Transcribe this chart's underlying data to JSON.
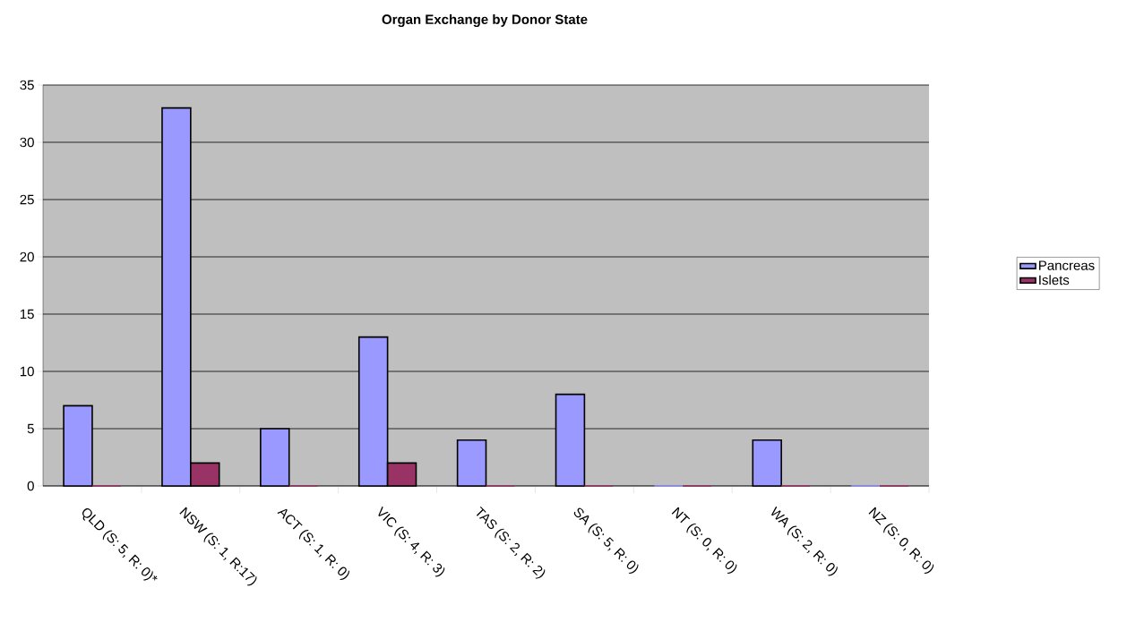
{
  "chart_data": {
    "type": "bar",
    "title": "Organ Exchange by Donor State",
    "categories": [
      "QLD (S: 5, R: 0)*",
      "NSW (S: 1, R:17)",
      "ACT (S: 1, R: 0)",
      "VIC (S: 4, R: 3)",
      "TAS (S: 2, R: 2)",
      "SA (S: 5, R: 0)",
      "NT (S: 0, R: 0)",
      "WA (S: 2, R: 0)",
      "NZ (S: 0, R: 0)"
    ],
    "series": [
      {
        "name": "Pancreas",
        "color": "#9999ff",
        "values": [
          7,
          33,
          5,
          13,
          4,
          8,
          0,
          4,
          0
        ]
      },
      {
        "name": "Islets",
        "color": "#993366",
        "values": [
          0,
          2,
          0,
          2,
          0,
          0,
          0,
          0,
          0
        ]
      }
    ],
    "ylim": [
      0,
      35
    ],
    "yticks": [
      0,
      5,
      10,
      15,
      20,
      25,
      30,
      35
    ],
    "grid": "y",
    "legend": "right"
  }
}
